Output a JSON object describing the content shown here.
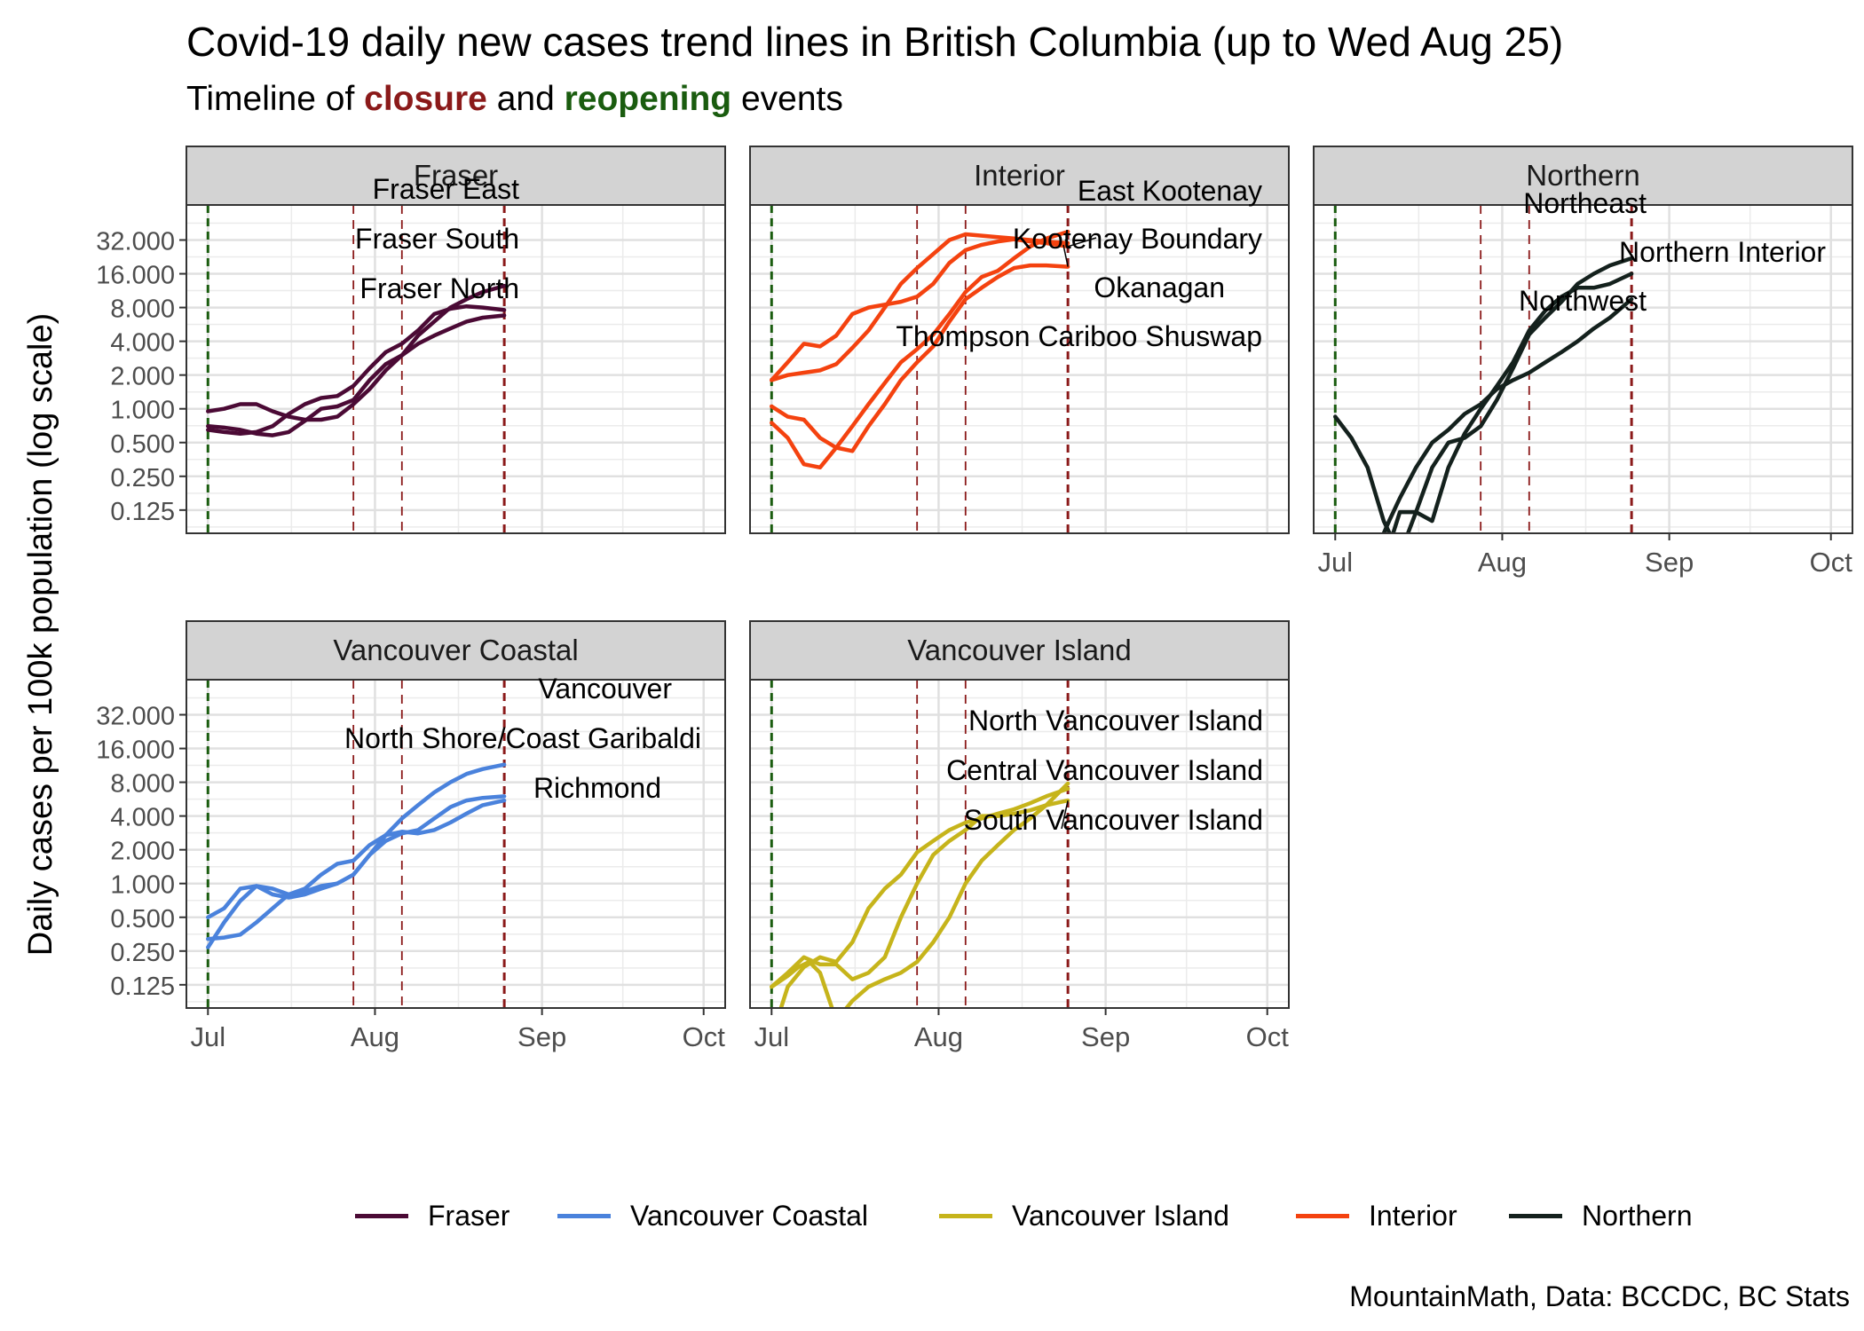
{
  "title": "Covid-19 daily new cases trend lines in British Columbia (up to Wed Aug 25)",
  "subtitle": {
    "prefix": "Timeline of ",
    "closure": "closure",
    "middle": " and ",
    "reopening": "reopening",
    "suffix": " events"
  },
  "caption": "MountainMath, Data: BCCDC, BC Stats",
  "colors": {
    "Fraser": "#4b0a35",
    "Vancouver Coastal": "#4a82dc",
    "Vancouver Island": "#c6b41b",
    "Interior": "#f4420f",
    "Northern": "#14211d",
    "closure": "#8b1a1a",
    "reopening": "#1a5c0f",
    "strip": "#d3d3d3"
  },
  "legend": [
    "Fraser",
    "Vancouver Coastal",
    "Vancouver Island",
    "Interior",
    "Northern"
  ],
  "chart_data": {
    "type": "line",
    "title": "Covid-19 daily new cases trend lines in British Columbia (up to Wed Aug 25)",
    "ylabel": "Daily cases per 100k population (log scale)",
    "y_scale": "log2",
    "y_ticks": [
      "32.000",
      "16.000",
      "8.000",
      "4.000",
      "2.000",
      "1.000",
      "0.500",
      "0.250",
      "0.125"
    ],
    "x_ticks": [
      "Jul",
      "Aug",
      "Sep",
      "Oct"
    ],
    "grid": true,
    "legend_position": "bottom",
    "reopening_events": [
      "2021-07-01"
    ],
    "closure_events": [
      "2021-07-28",
      "2021-08-06",
      "2021-08-25"
    ],
    "panels": [
      {
        "name": "Fraser",
        "color_key": "Fraser",
        "series": [
          {
            "name": "Fraser East",
            "x": [
              "2021-07-01",
              "2021-07-04",
              "2021-07-07",
              "2021-07-10",
              "2021-07-13",
              "2021-07-16",
              "2021-07-19",
              "2021-07-22",
              "2021-07-25",
              "2021-07-28",
              "2021-07-31",
              "2021-08-03",
              "2021-08-06",
              "2021-08-09",
              "2021-08-12",
              "2021-08-15",
              "2021-08-18",
              "2021-08-21",
              "2021-08-25"
            ],
            "y": [
              0.95,
              1.0,
              1.1,
              1.1,
              0.95,
              0.85,
              0.8,
              0.8,
              0.85,
              1.1,
              1.5,
              2.2,
              3.0,
              4.5,
              6.0,
              8.0,
              9.5,
              11.0,
              12.5
            ]
          },
          {
            "name": "Fraser South",
            "x": [
              "2021-07-01",
              "2021-07-04",
              "2021-07-07",
              "2021-07-10",
              "2021-07-13",
              "2021-07-16",
              "2021-07-19",
              "2021-07-22",
              "2021-07-25",
              "2021-07-28",
              "2021-07-31",
              "2021-08-03",
              "2021-08-06",
              "2021-08-09",
              "2021-08-12",
              "2021-08-15",
              "2021-08-18",
              "2021-08-21",
              "2021-08-25"
            ],
            "y": [
              0.65,
              0.62,
              0.6,
              0.62,
              0.7,
              0.9,
              1.1,
              1.25,
              1.3,
              1.6,
              2.3,
              3.2,
              3.8,
              5.0,
              7.0,
              7.8,
              8.2,
              8.0,
              7.6
            ]
          },
          {
            "name": "Fraser North",
            "x": [
              "2021-07-01",
              "2021-07-04",
              "2021-07-07",
              "2021-07-10",
              "2021-07-13",
              "2021-07-16",
              "2021-07-19",
              "2021-07-22",
              "2021-07-25",
              "2021-07-28",
              "2021-07-31",
              "2021-08-03",
              "2021-08-06",
              "2021-08-09",
              "2021-08-12",
              "2021-08-15",
              "2021-08-18",
              "2021-08-21",
              "2021-08-25"
            ],
            "y": [
              0.7,
              0.68,
              0.65,
              0.6,
              0.58,
              0.62,
              0.78,
              1.0,
              1.05,
              1.2,
              1.8,
              2.5,
              3.0,
              3.8,
              4.5,
              5.2,
              6.0,
              6.5,
              6.8
            ]
          }
        ]
      },
      {
        "name": "Interior",
        "color_key": "Interior",
        "series": [
          {
            "name": "East Kootenay",
            "x": [
              "2021-07-01",
              "2021-07-04",
              "2021-07-07",
              "2021-07-10",
              "2021-07-13",
              "2021-07-16",
              "2021-07-19",
              "2021-07-22",
              "2021-07-25",
              "2021-07-28",
              "2021-07-31",
              "2021-08-03",
              "2021-08-06",
              "2021-08-09",
              "2021-08-12",
              "2021-08-15",
              "2021-08-18",
              "2021-08-21",
              "2021-08-25"
            ],
            "y": [
              1.8,
              2.6,
              3.8,
              3.6,
              4.5,
              7.0,
              8.0,
              8.5,
              9.0,
              10.0,
              13.0,
              20.0,
              26.0,
              29.0,
              31.0,
              32.5,
              31.0,
              30.0,
              28.0
            ]
          },
          {
            "name": "Kootenay Boundary",
            "x": [
              "2021-07-01",
              "2021-07-04",
              "2021-07-07",
              "2021-07-10",
              "2021-07-13",
              "2021-07-16",
              "2021-07-19",
              "2021-07-22",
              "2021-07-25",
              "2021-07-28",
              "2021-07-31",
              "2021-08-03",
              "2021-08-06",
              "2021-08-09",
              "2021-08-12",
              "2021-08-15",
              "2021-08-18",
              "2021-08-21",
              "2021-08-25"
            ],
            "y": [
              1.8,
              2.0,
              2.1,
              2.2,
              2.5,
              3.5,
              5.0,
              8.0,
              13.0,
              18.0,
              24.0,
              32.0,
              36.0,
              35.0,
              34.0,
              33.0,
              32.0,
              31.0,
              30.0
            ]
          },
          {
            "name": "Okanagan",
            "x": [
              "2021-07-01",
              "2021-07-04",
              "2021-07-07",
              "2021-07-10",
              "2021-07-13",
              "2021-07-16",
              "2021-07-19",
              "2021-07-22",
              "2021-07-25",
              "2021-07-28",
              "2021-07-31",
              "2021-08-03",
              "2021-08-06",
              "2021-08-09",
              "2021-08-12",
              "2021-08-15",
              "2021-08-18",
              "2021-08-21",
              "2021-08-25"
            ],
            "y": [
              1.05,
              0.85,
              0.8,
              0.55,
              0.45,
              0.42,
              0.7,
              1.1,
              1.8,
              2.6,
              3.6,
              6.0,
              9.5,
              12.0,
              15.0,
              18.0,
              19.0,
              19.0,
              18.5
            ]
          },
          {
            "name": "Thompson Cariboo Shuswap",
            "x": [
              "2021-07-01",
              "2021-07-04",
              "2021-07-07",
              "2021-07-10",
              "2021-07-13",
              "2021-07-16",
              "2021-07-19",
              "2021-07-22",
              "2021-07-25",
              "2021-07-28",
              "2021-07-31",
              "2021-08-03",
              "2021-08-06",
              "2021-08-09",
              "2021-08-12",
              "2021-08-15",
              "2021-08-18",
              "2021-08-21",
              "2021-08-25"
            ],
            "y": [
              0.75,
              0.55,
              0.32,
              0.3,
              0.45,
              0.7,
              1.1,
              1.7,
              2.6,
              3.4,
              4.6,
              7.0,
              11.0,
              15.0,
              17.0,
              22.0,
              28.0,
              33.0,
              38.0
            ]
          }
        ]
      },
      {
        "name": "Northern",
        "color_key": "Northern",
        "series": [
          {
            "name": "Northeast",
            "x": [
              "2021-07-01",
              "2021-07-04",
              "2021-07-07",
              "2021-07-10",
              "2021-07-13",
              "2021-07-16",
              "2021-07-19",
              "2021-07-22",
              "2021-07-25",
              "2021-07-28",
              "2021-07-31",
              "2021-08-03",
              "2021-08-06",
              "2021-08-09",
              "2021-08-12",
              "2021-08-15",
              "2021-08-18",
              "2021-08-21",
              "2021-08-25"
            ],
            "y": [
              0.85,
              0.55,
              0.3,
              0.1,
              0.05,
              0.12,
              0.3,
              0.5,
              0.55,
              0.7,
              1.2,
              2.3,
              4.6,
              6.5,
              9.0,
              13.0,
              16.0,
              19.0,
              22.0
            ]
          },
          {
            "name": "Northern Interior",
            "x": [
              "2021-07-11",
              "2021-07-13",
              "2021-07-16",
              "2021-07-19",
              "2021-07-22",
              "2021-07-25",
              "2021-07-28",
              "2021-07-31",
              "2021-08-03",
              "2021-08-06",
              "2021-08-09",
              "2021-08-12",
              "2021-08-15",
              "2021-08-18",
              "2021-08-21",
              "2021-08-25"
            ],
            "y": [
              0.06,
              0.12,
              0.12,
              0.1,
              0.3,
              0.6,
              1.0,
              1.6,
              2.6,
              5.0,
              7.5,
              10.0,
              12.0,
              12.0,
              13.0,
              16.0
            ]
          },
          {
            "name": "Northwest",
            "x": [
              "2021-07-09",
              "2021-07-11",
              "2021-07-13",
              "2021-07-16",
              "2021-07-19",
              "2021-07-22",
              "2021-07-25",
              "2021-07-28",
              "2021-07-31",
              "2021-08-03",
              "2021-08-06",
              "2021-08-09",
              "2021-08-12",
              "2021-08-15",
              "2021-08-18",
              "2021-08-21",
              "2021-08-25"
            ],
            "y": [
              0.06,
              0.1,
              0.16,
              0.3,
              0.5,
              0.65,
              0.9,
              1.1,
              1.5,
              1.8,
              2.1,
              2.6,
              3.2,
              4.0,
              5.2,
              6.5,
              9.5
            ]
          }
        ]
      },
      {
        "name": "Vancouver Coastal",
        "color_key": "Vancouver Coastal",
        "series": [
          {
            "name": "Vancouver",
            "x": [
              "2021-07-01",
              "2021-07-04",
              "2021-07-07",
              "2021-07-10",
              "2021-07-13",
              "2021-07-16",
              "2021-07-19",
              "2021-07-22",
              "2021-07-25",
              "2021-07-28",
              "2021-07-31",
              "2021-08-03",
              "2021-08-06",
              "2021-08-09",
              "2021-08-12",
              "2021-08-15",
              "2021-08-18",
              "2021-08-21",
              "2021-08-25"
            ],
            "y": [
              0.5,
              0.6,
              0.9,
              0.95,
              0.8,
              0.75,
              0.8,
              0.9,
              1.0,
              1.2,
              1.8,
              2.7,
              3.8,
              5.0,
              6.5,
              8.0,
              9.5,
              10.5,
              11.5
            ]
          },
          {
            "name": "North Shore/Coast Garibaldi",
            "x": [
              "2021-07-01",
              "2021-07-04",
              "2021-07-07",
              "2021-07-10",
              "2021-07-13",
              "2021-07-16",
              "2021-07-19",
              "2021-07-22",
              "2021-07-25",
              "2021-07-28",
              "2021-07-31",
              "2021-08-03",
              "2021-08-06",
              "2021-08-09",
              "2021-08-12",
              "2021-08-15",
              "2021-08-18",
              "2021-08-21",
              "2021-08-25"
            ],
            "y": [
              0.27,
              0.45,
              0.7,
              0.95,
              0.9,
              0.8,
              0.9,
              1.2,
              1.5,
              1.6,
              2.2,
              2.7,
              2.9,
              2.8,
              3.0,
              3.5,
              4.2,
              5.0,
              5.5
            ]
          },
          {
            "name": "Richmond",
            "x": [
              "2021-07-01",
              "2021-07-04",
              "2021-07-07",
              "2021-07-10",
              "2021-07-13",
              "2021-07-16",
              "2021-07-19",
              "2021-07-22",
              "2021-07-25",
              "2021-07-28",
              "2021-07-31",
              "2021-08-03",
              "2021-08-06",
              "2021-08-09",
              "2021-08-12",
              "2021-08-15",
              "2021-08-18",
              "2021-08-21",
              "2021-08-25"
            ],
            "y": [
              0.32,
              0.33,
              0.35,
              0.45,
              0.6,
              0.8,
              0.85,
              0.95,
              1.0,
              1.2,
              1.8,
              2.4,
              2.8,
              3.0,
              3.8,
              4.8,
              5.5,
              5.8,
              6.0
            ]
          }
        ]
      },
      {
        "name": "Vancouver Island",
        "color_key": "Vancouver Island",
        "series": [
          {
            "name": "North Vancouver Island",
            "x": [
              "2021-07-01",
              "2021-07-04",
              "2021-07-06",
              "2021-07-08",
              "2021-07-10",
              "2021-07-13",
              "2021-07-16",
              "2021-07-19",
              "2021-07-22",
              "2021-07-25",
              "2021-07-28",
              "2021-07-31",
              "2021-08-03",
              "2021-08-06",
              "2021-08-09",
              "2021-08-12",
              "2021-08-15",
              "2021-08-18",
              "2021-08-21",
              "2021-08-25"
            ],
            "y": [
              0.12,
              0.15,
              0.18,
              0.2,
              0.16,
              0.06,
              0.09,
              0.12,
              0.14,
              0.16,
              0.2,
              0.3,
              0.5,
              1.0,
              1.6,
              2.2,
              3.0,
              3.8,
              5.0,
              7.8
            ]
          },
          {
            "name": "Central Vancouver Island",
            "x": [
              "2021-07-02",
              "2021-07-04",
              "2021-07-07",
              "2021-07-10",
              "2021-07-13",
              "2021-07-16",
              "2021-07-19",
              "2021-07-22",
              "2021-07-25",
              "2021-07-28",
              "2021-07-31",
              "2021-08-03",
              "2021-08-06",
              "2021-08-09",
              "2021-08-12",
              "2021-08-15",
              "2021-08-18",
              "2021-08-21",
              "2021-08-25"
            ],
            "y": [
              0.06,
              0.12,
              0.18,
              0.22,
              0.2,
              0.3,
              0.6,
              0.9,
              1.2,
              1.9,
              2.4,
              3.0,
              3.5,
              3.8,
              4.2,
              4.6,
              5.2,
              6.0,
              7.0
            ]
          },
          {
            "name": "South Vancouver Island",
            "x": [
              "2021-07-01",
              "2021-07-04",
              "2021-07-07",
              "2021-07-10",
              "2021-07-13",
              "2021-07-16",
              "2021-07-19",
              "2021-07-22",
              "2021-07-25",
              "2021-07-28",
              "2021-07-31",
              "2021-08-03",
              "2021-08-06",
              "2021-08-09",
              "2021-08-12",
              "2021-08-15",
              "2021-08-18",
              "2021-08-21",
              "2021-08-25"
            ],
            "y": [
              0.12,
              0.16,
              0.22,
              0.19,
              0.19,
              0.14,
              0.16,
              0.22,
              0.5,
              1.0,
              1.8,
              2.4,
              3.0,
              4.0,
              4.0,
              4.2,
              4.5,
              5.0,
              5.5
            ]
          }
        ]
      }
    ]
  }
}
